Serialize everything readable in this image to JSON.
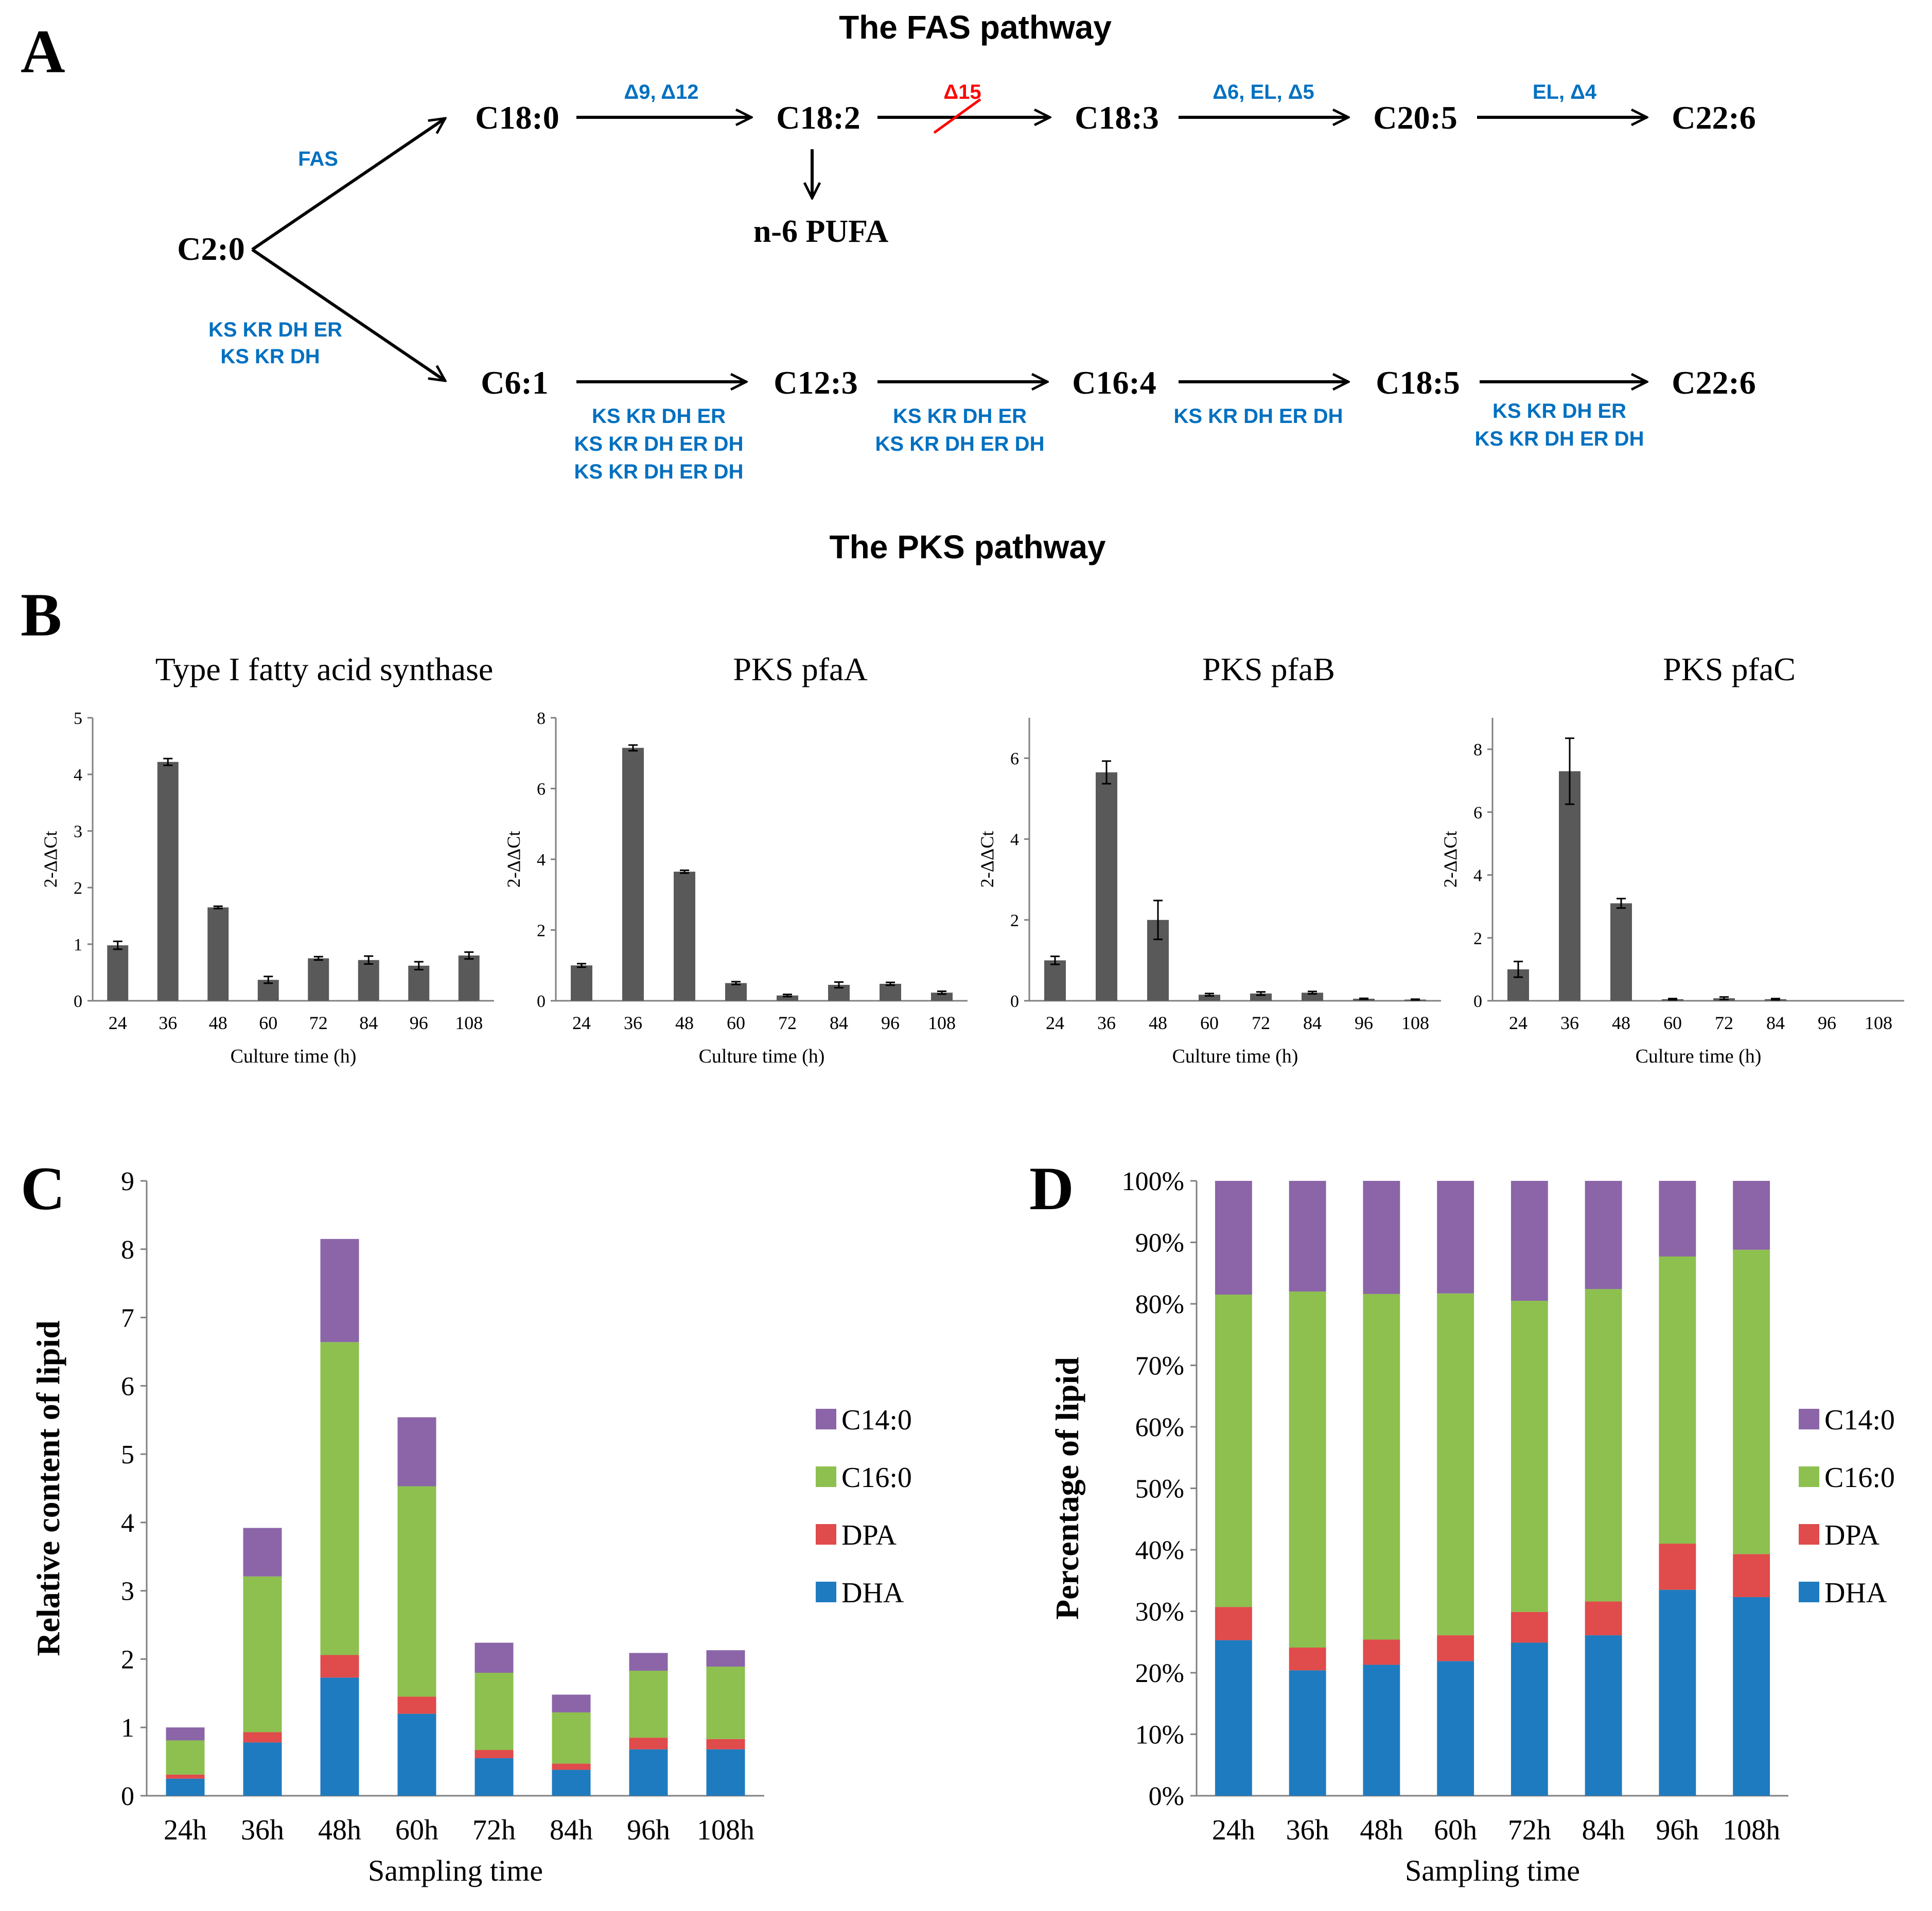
{
  "panels": {
    "a": "A",
    "b": "B",
    "c": "C",
    "d": "D"
  },
  "pathway": {
    "fas_title": "The FAS pathway",
    "pks_title": "The PKS pathway",
    "start": "C2:0",
    "fas_label": "FAS",
    "pks_branch_label": [
      "KS KR DH ER",
      "KS KR DH"
    ],
    "fas_nodes": [
      "C18:0",
      "C18:2",
      "C18:3",
      "C20:5",
      "C22:6"
    ],
    "fas_enzymes": [
      "Δ9, Δ12",
      "Δ15",
      "Δ6, EL, Δ5",
      "EL, Δ4"
    ],
    "fas_side_product": "n-6 PUFA",
    "pks_nodes": [
      "C6:1",
      "C12:3",
      "C16:4",
      "C18:5",
      "C22:6"
    ],
    "pks_enzymes": [
      [
        "KS KR DH ER",
        "KS KR DH ER DH",
        "KS KR DH ER DH"
      ],
      [
        "KS KR DH ER",
        "KS KR DH ER DH"
      ],
      [
        "KS KR DH ER DH"
      ],
      [
        "KS KR DH ER",
        "KS KR DH ER DH"
      ]
    ],
    "colors": {
      "enzyme": "#0070c0",
      "blocked": "#ff0000"
    }
  },
  "chart_data": [
    {
      "type": "bar",
      "title": "Type I fatty acid synthase",
      "xlabel": "Culture time (h)",
      "ylabel": "2-ΔΔCt",
      "categories": [
        "24",
        "36",
        "48",
        "60",
        "72",
        "84",
        "96",
        "108"
      ],
      "values": [
        0.98,
        4.22,
        1.65,
        0.37,
        0.75,
        0.72,
        0.62,
        0.8
      ],
      "errors": [
        0.07,
        0.06,
        0.02,
        0.06,
        0.03,
        0.07,
        0.07,
        0.06
      ],
      "ylim": [
        0,
        5
      ],
      "yticks": [
        0,
        1,
        2,
        3,
        4,
        5
      ],
      "color": "#595959"
    },
    {
      "type": "bar",
      "title": "PKS pfaA",
      "xlabel": "Culture time (h)",
      "ylabel": "2-ΔΔCt",
      "categories": [
        "24",
        "36",
        "48",
        "60",
        "72",
        "84",
        "96",
        "108"
      ],
      "values": [
        1.0,
        7.15,
        3.65,
        0.5,
        0.15,
        0.45,
        0.48,
        0.23
      ],
      "errors": [
        0.05,
        0.08,
        0.04,
        0.04,
        0.03,
        0.08,
        0.04,
        0.04
      ],
      "ylim": [
        0,
        8
      ],
      "yticks": [
        0,
        2,
        4,
        6,
        8
      ],
      "color": "#595959"
    },
    {
      "type": "bar",
      "title": "PKS pfaB",
      "xlabel": "Culture time (h)",
      "ylabel": "2-ΔΔCt",
      "categories": [
        "24",
        "36",
        "48",
        "60",
        "72",
        "84",
        "96",
        "108"
      ],
      "values": [
        1.0,
        5.65,
        2.0,
        0.15,
        0.18,
        0.2,
        0.05,
        0.03
      ],
      "errors": [
        0.1,
        0.28,
        0.48,
        0.03,
        0.04,
        0.03,
        0.01,
        0.01
      ],
      "ylim": [
        0,
        7
      ],
      "yticks": [
        0,
        2,
        4,
        6
      ],
      "color": "#595959"
    },
    {
      "type": "bar",
      "title": "PKS pfaC",
      "xlabel": "Culture time (h)",
      "ylabel": "2-ΔΔCt",
      "categories": [
        "24",
        "36",
        "48",
        "60",
        "72",
        "84",
        "96",
        "108"
      ],
      "values": [
        1.0,
        7.3,
        3.1,
        0.05,
        0.08,
        0.05,
        0.0,
        0.0
      ],
      "errors": [
        0.25,
        1.05,
        0.15,
        0.02,
        0.04,
        0.02,
        0.0,
        0.0
      ],
      "ylim": [
        0,
        9
      ],
      "yticks": [
        0,
        2,
        4,
        6,
        8
      ],
      "color": "#595959"
    },
    {
      "type": "bar",
      "stacked": true,
      "xlabel": "Sampling time",
      "ylabel": "Relative content of lipid",
      "categories": [
        "24h",
        "36h",
        "48h",
        "60h",
        "72h",
        "84h",
        "96h",
        "108h"
      ],
      "ylim": [
        0,
        9
      ],
      "yticks": [
        0,
        1,
        2,
        3,
        4,
        5,
        6,
        7,
        8,
        9
      ],
      "legend": "right",
      "series": [
        {
          "name": "DHA",
          "color": "#1f7bbf",
          "values": [
            0.25,
            0.78,
            1.73,
            1.2,
            0.55,
            0.38,
            0.68,
            0.68
          ]
        },
        {
          "name": "DPA",
          "color": "#e04b4b",
          "values": [
            0.06,
            0.15,
            0.33,
            0.25,
            0.12,
            0.09,
            0.17,
            0.15
          ]
        },
        {
          "name": "C16:0",
          "color": "#8dc04f",
          "values": [
            0.5,
            2.28,
            4.58,
            3.08,
            1.13,
            0.75,
            0.98,
            1.06
          ]
        },
        {
          "name": "C14:0",
          "color": "#8b65a8",
          "values": [
            0.19,
            0.71,
            1.51,
            1.01,
            0.44,
            0.26,
            0.26,
            0.24
          ]
        }
      ]
    },
    {
      "type": "bar",
      "stacked": true,
      "xlabel": "Sampling time",
      "ylabel": "Percentage  of lipid",
      "categories": [
        "24h",
        "36h",
        "48h",
        "60h",
        "72h",
        "84h",
        "96h",
        "108h"
      ],
      "ylim": [
        0,
        100
      ],
      "yticks": [
        "0%",
        "10%",
        "20%",
        "30%",
        "40%",
        "50%",
        "60%",
        "70%",
        "80%",
        "90%",
        "100%"
      ],
      "legend": "right",
      "series": [
        {
          "name": "DHA",
          "color": "#1f7bbf",
          "values": [
            25.3,
            20.4,
            21.3,
            21.9,
            24.9,
            26.1,
            33.5,
            32.3
          ]
        },
        {
          "name": "DPA",
          "color": "#e04b4b",
          "values": [
            5.4,
            3.7,
            4.1,
            4.2,
            5.0,
            5.5,
            7.5,
            7.0
          ]
        },
        {
          "name": "C16:0",
          "color": "#8dc04f",
          "values": [
            50.8,
            57.9,
            56.2,
            55.6,
            50.6,
            50.8,
            46.7,
            49.5
          ]
        },
        {
          "name": "C14:0",
          "color": "#8b65a8",
          "values": [
            18.5,
            18.0,
            18.4,
            18.3,
            19.5,
            17.6,
            12.3,
            11.2
          ]
        }
      ]
    }
  ]
}
